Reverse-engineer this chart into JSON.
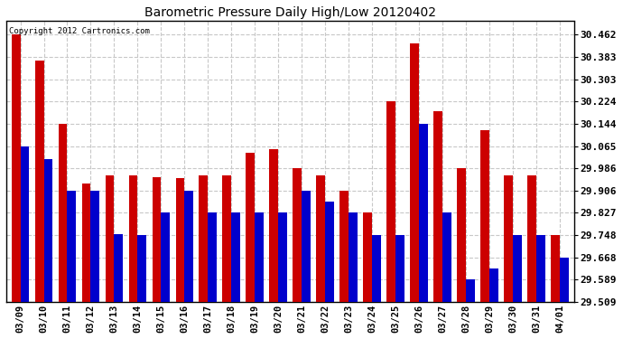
{
  "title": "Barometric Pressure Daily High/Low 20120402",
  "copyright": "Copyright 2012 Cartronics.com",
  "dates": [
    "03/09",
    "03/10",
    "03/11",
    "03/12",
    "03/13",
    "03/14",
    "03/15",
    "03/16",
    "03/17",
    "03/18",
    "03/19",
    "03/20",
    "03/21",
    "03/22",
    "03/23",
    "03/24",
    "03/25",
    "03/26",
    "03/27",
    "03/28",
    "03/29",
    "03/30",
    "03/31",
    "04/01"
  ],
  "highs": [
    30.462,
    30.37,
    30.145,
    29.93,
    29.96,
    29.96,
    29.955,
    29.95,
    29.96,
    29.96,
    30.04,
    30.055,
    29.986,
    29.96,
    29.906,
    29.827,
    30.224,
    30.43,
    30.19,
    29.986,
    30.12,
    29.96,
    29.96,
    29.748
  ],
  "lows": [
    30.065,
    30.02,
    29.906,
    29.906,
    29.75,
    29.748,
    29.827,
    29.906,
    29.827,
    29.827,
    29.827,
    29.827,
    29.906,
    29.868,
    29.827,
    29.748,
    29.748,
    30.144,
    29.827,
    29.589,
    29.628,
    29.748,
    29.748,
    29.668
  ],
  "high_color": "#cc0000",
  "low_color": "#0000cc",
  "bg_color": "#ffffff",
  "grid_color": "#c8c8c8",
  "yticks": [
    29.509,
    29.589,
    29.668,
    29.748,
    29.827,
    29.906,
    29.986,
    30.065,
    30.144,
    30.224,
    30.303,
    30.383,
    30.462
  ],
  "ylim_min": 29.509,
  "ylim_max": 30.51,
  "bar_width": 0.38
}
